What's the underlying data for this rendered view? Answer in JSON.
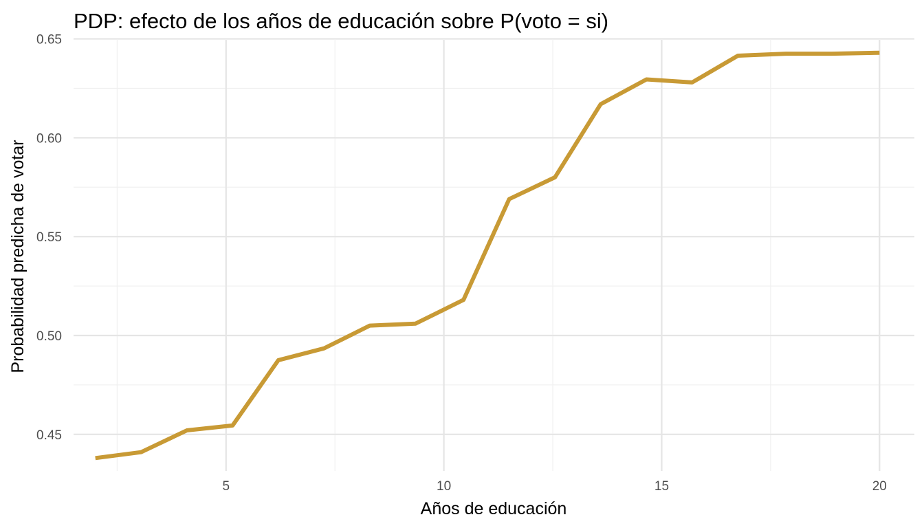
{
  "chart_data": {
    "type": "line",
    "title": "PDP: efecto de los años de educación sobre P(voto = si)",
    "xlabel": "Años de educación",
    "ylabel": "Probabilidad predicha de votar",
    "xlim": [
      1.5,
      20.8
    ],
    "ylim": [
      0.4315,
      0.6495
    ],
    "x_ticks": [
      {
        "value": 5,
        "label": "5"
      },
      {
        "value": 10,
        "label": "10"
      },
      {
        "value": 15,
        "label": "15"
      },
      {
        "value": 20,
        "label": "20"
      }
    ],
    "x_minor_ticks": [
      2.5,
      7.5,
      12.5,
      17.5
    ],
    "y_ticks": [
      {
        "value": 0.45,
        "label": "0.45"
      },
      {
        "value": 0.5,
        "label": "0.50"
      },
      {
        "value": 0.55,
        "label": "0.55"
      },
      {
        "value": 0.6,
        "label": "0.60"
      },
      {
        "value": 0.65,
        "label": "0.65"
      }
    ],
    "y_minor_ticks": [
      0.475,
      0.525,
      0.575,
      0.625
    ],
    "grid": true,
    "series": [
      {
        "color": "#c89a35",
        "x": [
          2.0,
          3.05,
          4.1,
          5.15,
          6.2,
          7.25,
          8.3,
          9.35,
          10.45,
          11.5,
          12.55,
          13.6,
          14.65,
          15.7,
          16.75,
          17.85,
          18.9,
          20.0
        ],
        "y": [
          0.438,
          0.441,
          0.452,
          0.4545,
          0.4875,
          0.4935,
          0.505,
          0.506,
          0.518,
          0.569,
          0.58,
          0.617,
          0.6295,
          0.628,
          0.6415,
          0.6425,
          0.6425,
          0.643
        ]
      }
    ]
  }
}
